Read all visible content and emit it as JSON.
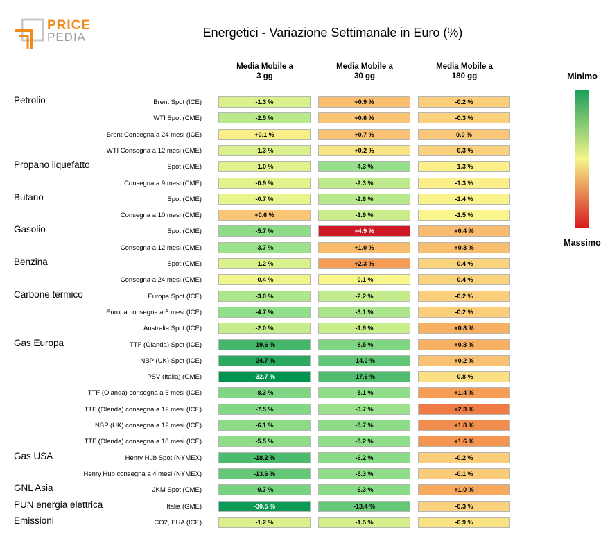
{
  "logo": {
    "line1": "PRICE",
    "line2": "PEDIA"
  },
  "chart_data": {
    "type": "heatmap",
    "title": "Energetici - Variazione Settimanale in Euro (%)",
    "columns": [
      "Media Mobile a\n3 gg",
      "Media Mobile a\n30 gg",
      "Media Mobile a\n180 gg"
    ],
    "legend": {
      "top": "Minimo",
      "bottom": "Massimo",
      "colors": [
        "#1b9e5a",
        "#f5f58a",
        "#d7191c"
      ]
    },
    "groups": [
      {
        "name": "Petrolio",
        "rows": [
          {
            "label": "Brent Spot (ICE)",
            "values": [
              "-1.3 %",
              "+0.9 %",
              "-0.2 %"
            ]
          },
          {
            "label": "WTI Spot (CME)",
            "values": [
              "-2.5 %",
              "+0.6 %",
              "-0.3 %"
            ]
          },
          {
            "label": "Brent Consegna a 24 mesi (ICE)",
            "values": [
              "+0.1 %",
              "+0.7 %",
              "0.0 %"
            ]
          },
          {
            "label": "WTI Consegna a 12 mesi (CME)",
            "values": [
              "-1.3 %",
              "+0.2 %",
              "-0.3 %"
            ]
          }
        ]
      },
      {
        "name": "Propano liquefatto",
        "rows": [
          {
            "label": "Spot (CME)",
            "values": [
              "-1.0 %",
              "-4.3 %",
              "-1.3 %"
            ]
          },
          {
            "label": "Consegna a 9 mesi (CME)",
            "values": [
              "-0.9 %",
              "-2.3 %",
              "-1.3 %"
            ]
          }
        ]
      },
      {
        "name": "Butano",
        "rows": [
          {
            "label": "Spot (CME)",
            "values": [
              "-0.7 %",
              "-2.6 %",
              "-1.4 %"
            ]
          },
          {
            "label": "Consegna a 10 mesi (CME)",
            "values": [
              "+0.6 %",
              "-1.9 %",
              "-1.5 %"
            ]
          }
        ]
      },
      {
        "name": "Gasolio",
        "rows": [
          {
            "label": "Spot (CME)",
            "values": [
              "-5.7 %",
              "+4.9 %",
              "+0.4 %"
            ]
          },
          {
            "label": "Consegna a 12 mesi (CME)",
            "values": [
              "-3.7 %",
              "+1.0 %",
              "+0.3 %"
            ]
          }
        ]
      },
      {
        "name": "Benzina",
        "rows": [
          {
            "label": "Spot (CME)",
            "values": [
              "-1.2 %",
              "+2.3 %",
              "-0.4 %"
            ]
          },
          {
            "label": "Consegna a 24 mesi (CME)",
            "values": [
              "-0.4 %",
              "-0.1 %",
              "-0.4 %"
            ]
          }
        ]
      },
      {
        "name": "Carbone termico",
        "rows": [
          {
            "label": "Europa Spot (ICE)",
            "values": [
              "-3.0 %",
              "-2.2 %",
              "-0.2 %"
            ]
          },
          {
            "label": "Europa consegna a 5 mesi (ICE)",
            "values": [
              "-4.7 %",
              "-3.1 %",
              "-0.2 %"
            ]
          },
          {
            "label": "Australia Spot (ICE)",
            "values": [
              "-2.0 %",
              "-1.9 %",
              "+0.8 %"
            ]
          }
        ]
      },
      {
        "name": "Gas Europa",
        "rows": [
          {
            "label": "TTF (Olanda) Spot (ICE)",
            "values": [
              "-19.6 %",
              "-8.5 %",
              "+0.8 %"
            ]
          },
          {
            "label": "NBP (UK) Spot (ICE)",
            "values": [
              "-24.7 %",
              "-14.0 %",
              "+0.2 %"
            ]
          },
          {
            "label": "PSV (Italia) (GME)",
            "values": [
              "-32.7 %",
              "-17.6 %",
              "-0.8 %"
            ]
          },
          {
            "label": "TTF (Olanda) consegna a 6 mesi (ICE)",
            "values": [
              "-8.3 %",
              "-5.1 %",
              "+1.4 %"
            ]
          },
          {
            "label": "TTF (Olanda) consegna a 12 mesi (ICE)",
            "values": [
              "-7.5 %",
              "-3.7 %",
              "+2.3 %"
            ]
          },
          {
            "label": "NBP (UK) consegna a 12 mesi (ICE)",
            "values": [
              "-6.1 %",
              "-5.7 %",
              "+1.8 %"
            ]
          },
          {
            "label": "TTF (Olanda) consegna a 18 mesi (ICE)",
            "values": [
              "-5.5 %",
              "-5.2 %",
              "+1.6 %"
            ]
          }
        ]
      },
      {
        "name": "Gas USA",
        "rows": [
          {
            "label": "Henry Hub Spot (NYMEX)",
            "values": [
              "-18.2 %",
              "-6.2 %",
              "-0.2 %"
            ]
          },
          {
            "label": "Henry Hub consegna a 4 mesi (NYMEX)",
            "values": [
              "-13.6 %",
              "-5.3 %",
              "-0.1 %"
            ]
          }
        ]
      },
      {
        "name": "GNL Asia",
        "rows": [
          {
            "label": "JKM Spot (CME)",
            "values": [
              "-9.7 %",
              "-6.3 %",
              "+1.0 %"
            ]
          }
        ]
      },
      {
        "name": "PUN energia elettrica",
        "rows": [
          {
            "label": "Italia (GME)",
            "values": [
              "-30.5 %",
              "-13.4 %",
              "-0.3 %"
            ]
          }
        ]
      },
      {
        "name": "Emissioni",
        "rows": [
          {
            "label": "CO2, EUA (ICE)",
            "values": [
              "-1.2 %",
              "-1.5 %",
              "-0.9 %"
            ]
          }
        ]
      }
    ]
  }
}
